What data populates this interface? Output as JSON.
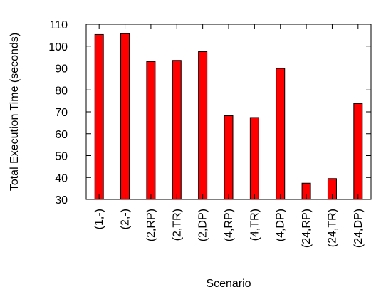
{
  "chart_data": {
    "type": "bar",
    "title": "",
    "xlabel": "Scenario",
    "ylabel": "Total Execution Time (seconds)",
    "ylim": [
      30,
      110
    ],
    "yticks": [
      "30",
      "40",
      "50",
      "60",
      "70",
      "80",
      "90",
      "100",
      "110"
    ],
    "categories": [
      "(1,-)",
      "(2,-)",
      "(2,RP)",
      "(2,TR)",
      "(2,DP)",
      "(4,RP)",
      "(4,TR)",
      "(4,DP)",
      "(24,RP)",
      "(24,TR)",
      "(24,DP)"
    ],
    "values": [
      105.3,
      105.7,
      93.0,
      93.5,
      97.5,
      68.2,
      67.4,
      89.8,
      37.4,
      39.5,
      73.8
    ],
    "bar_color": "#ff0000",
    "grid": false,
    "legend": "none"
  }
}
